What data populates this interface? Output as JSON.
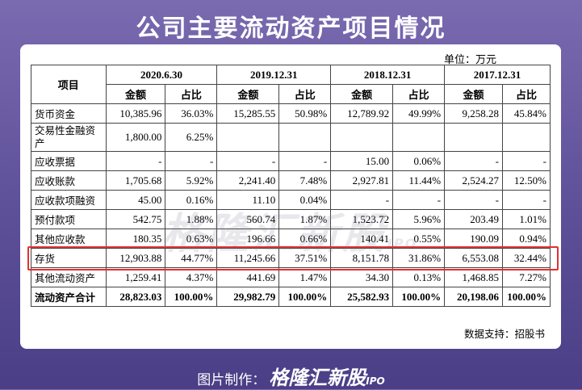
{
  "title": "公司主要流动资产项目情况",
  "unit": "单位：万元",
  "table": {
    "item_header": "项目",
    "periods": [
      "2020.6.30",
      "2019.12.31",
      "2018.12.31",
      "2017.12.31"
    ],
    "sub_headers": [
      "金额",
      "占比"
    ],
    "rows": [
      {
        "label": "货币资金",
        "cells": [
          "10,385.96",
          "36.03%",
          "15,285.55",
          "50.98%",
          "12,789.92",
          "49.99%",
          "9,258.28",
          "45.84%"
        ]
      },
      {
        "label": "交易性金融资产",
        "cells": [
          "1,800.00",
          "6.25%",
          "",
          "",
          "",
          "",
          "",
          ""
        ]
      },
      {
        "label": "应收票据",
        "cells": [
          "-",
          "-",
          "-",
          "-",
          "15.00",
          "0.06%",
          "-",
          "-"
        ]
      },
      {
        "label": "应收账款",
        "cells": [
          "1,705.68",
          "5.92%",
          "2,241.40",
          "7.48%",
          "2,927.81",
          "11.44%",
          "2,524.27",
          "12.50%"
        ]
      },
      {
        "label": "应收款项融资",
        "cells": [
          "45.00",
          "0.16%",
          "11.10",
          "0.04%",
          "-",
          "-",
          "-",
          "-"
        ]
      },
      {
        "label": "预付款项",
        "cells": [
          "542.75",
          "1.88%",
          "560.74",
          "1.87%",
          "1,523.72",
          "5.96%",
          "203.49",
          "1.01%"
        ]
      },
      {
        "label": "其他应收款",
        "cells": [
          "180.35",
          "0.63%",
          "196.66",
          "0.66%",
          "140.41",
          "0.55%",
          "190.09",
          "0.94%"
        ]
      },
      {
        "label": "存货",
        "cells": [
          "12,903.88",
          "44.77%",
          "11,245.66",
          "37.51%",
          "8,151.78",
          "31.86%",
          "6,553.08",
          "32.44%"
        ]
      },
      {
        "label": "其他流动资产",
        "cells": [
          "1,259.41",
          "4.37%",
          "441.69",
          "1.47%",
          "34.30",
          "0.13%",
          "1,468.85",
          "7.27%"
        ]
      },
      {
        "label": "流动资产合计",
        "cells": [
          "28,823.03",
          "100.00%",
          "29,982.79",
          "100.00%",
          "25,582.93",
          "100.00%",
          "20,198.06",
          "100.00%"
        ]
      }
    ]
  },
  "source": "数据支持：招股书",
  "watermark": {
    "text": "格隆汇新股",
    "suffix": "IPO"
  },
  "footer": {
    "prefix": "图片制作：",
    "brand": "格隆汇新股",
    "suffix": "IPO"
  },
  "colors": {
    "highlight": "#e23030",
    "background": "#6a5aa6"
  }
}
